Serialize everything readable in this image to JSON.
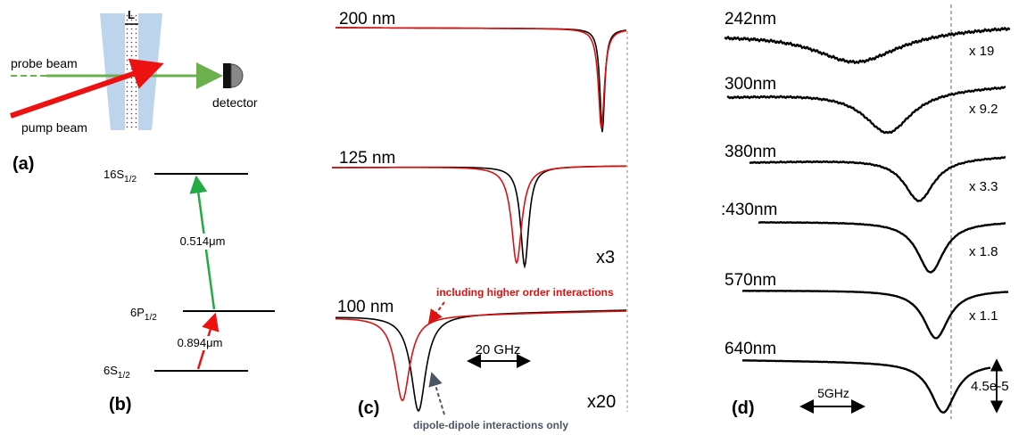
{
  "panels": {
    "a": "(a)",
    "b": "(b)",
    "c": "(c)",
    "d": "(d)"
  },
  "setup": {
    "length_label": "L",
    "probe": "probe beam",
    "pump": "pump beam",
    "detector": "detector",
    "colors": {
      "probe": "#6ab04c",
      "pump": "#ee1111",
      "cell": "#bcd4ec"
    }
  },
  "levels": {
    "top": {
      "base": "16S",
      "sub": "1/2"
    },
    "mid": {
      "base": "6P",
      "sub": "1/2"
    },
    "bottom": {
      "base": "6S",
      "sub": "1/2"
    },
    "upper_transition": "0.514μm",
    "lower_transition": "0.894μm",
    "colors": {
      "upper": "#22aa44",
      "lower": "#ee1111"
    }
  },
  "panel_c": {
    "traces": [
      {
        "title": "200 nm",
        "multiplier": ""
      },
      {
        "title": "125 nm",
        "multiplier": "x3"
      },
      {
        "title": "100 nm",
        "multiplier": "x20"
      }
    ],
    "scale_bar": "20 GHz",
    "annotation_red": "including higher order interactions",
    "annotation_gray": "dipole-dipole interactions only",
    "colors": {
      "full": "#dd1111",
      "dipole": "#000000"
    }
  },
  "panel_d": {
    "traces": [
      {
        "label": "242nm",
        "multiplier": "x 19"
      },
      {
        "label": "300nm",
        "multiplier": "x 9.2"
      },
      {
        "label": "380nm",
        "multiplier": "x 3.3"
      },
      {
        "label": ":430nm",
        "multiplier": "x 1.8"
      },
      {
        "label": "570nm",
        "multiplier": "x 1.1"
      },
      {
        "label": "640nm",
        "multiplier": ""
      }
    ],
    "scale_bar": "5GHz",
    "amplitude_bar": "4.5e-5"
  }
}
